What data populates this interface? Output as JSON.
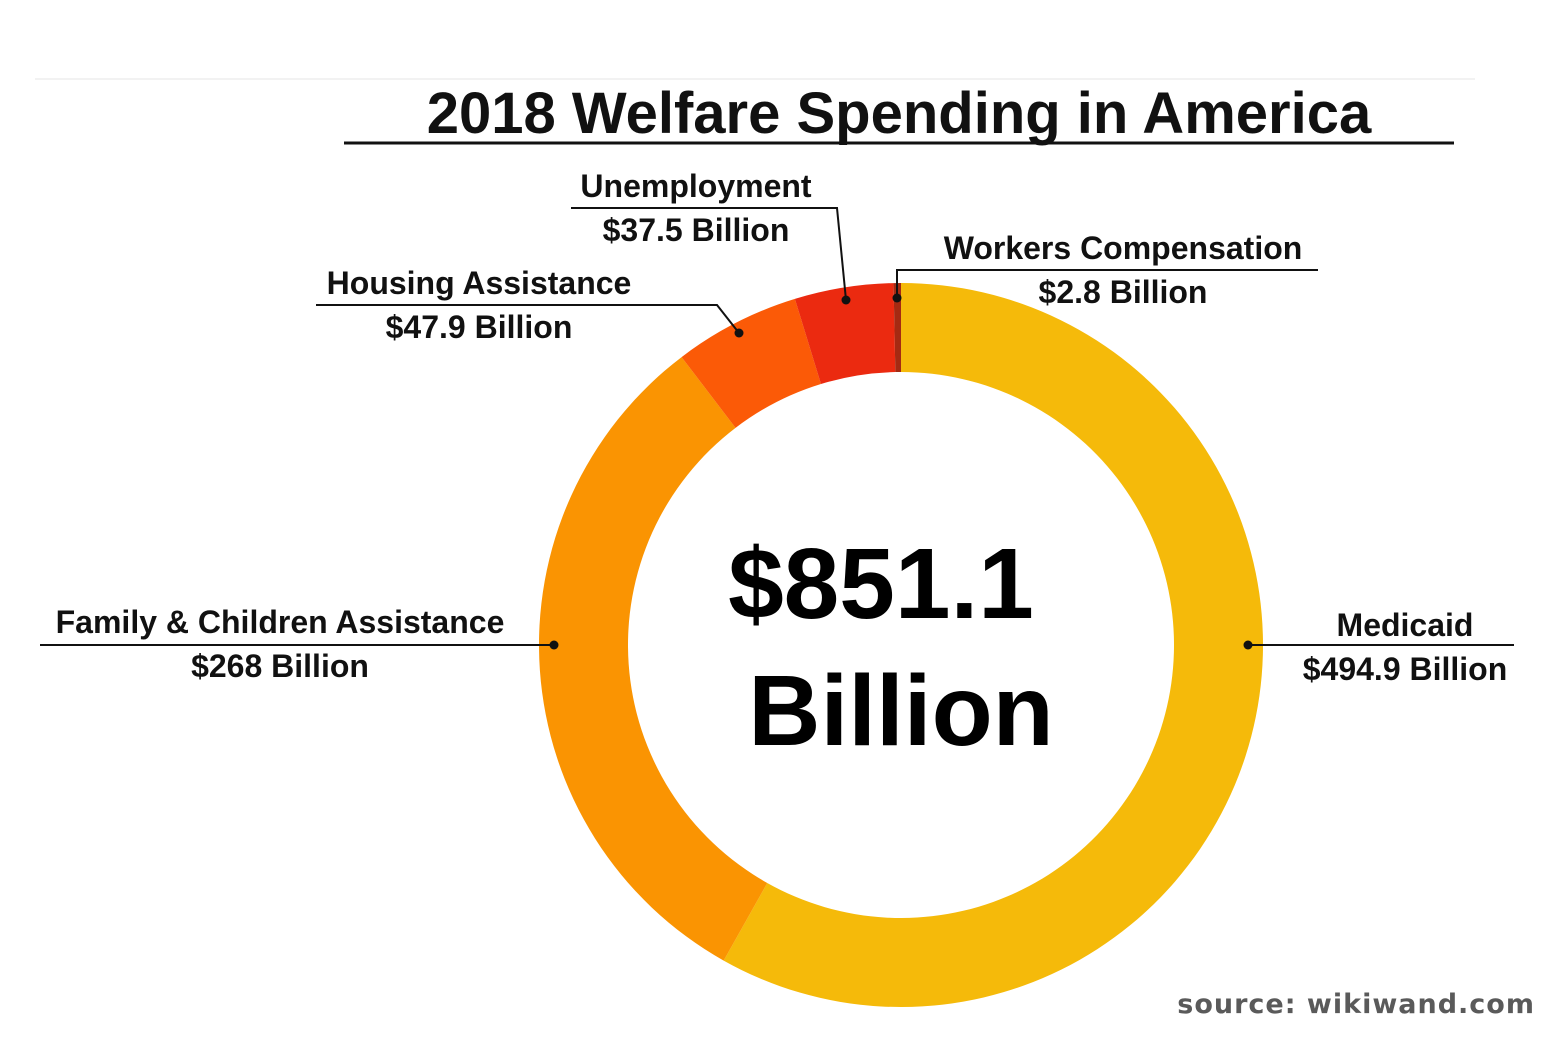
{
  "chart_data": {
    "type": "pie",
    "title": "2018 Welfare Spending in America",
    "total_line1": "$851.1",
    "total_line2": "Billion",
    "source": "source: wikiwand.com",
    "unit": "Billion USD",
    "slices": [
      {
        "label": "Medicaid",
        "value_label": "$494.9 Billion",
        "value": 494.9,
        "color": "#F5BA0A"
      },
      {
        "label": "Family & Children Assistance",
        "value_label": "$268 Billion",
        "value": 268,
        "color": "#FA9402"
      },
      {
        "label": "Housing Assistance",
        "value_label": "$47.9 Billion",
        "value": 47.9,
        "color": "#FB5A07"
      },
      {
        "label": "Unemployment",
        "value_label": "$37.5 Billion",
        "value": 37.5,
        "color": "#EB2A10"
      },
      {
        "label": "Workers Compensation",
        "value_label": "$2.8 Billion",
        "value": 2.8,
        "color": "#A52A12"
      }
    ]
  }
}
